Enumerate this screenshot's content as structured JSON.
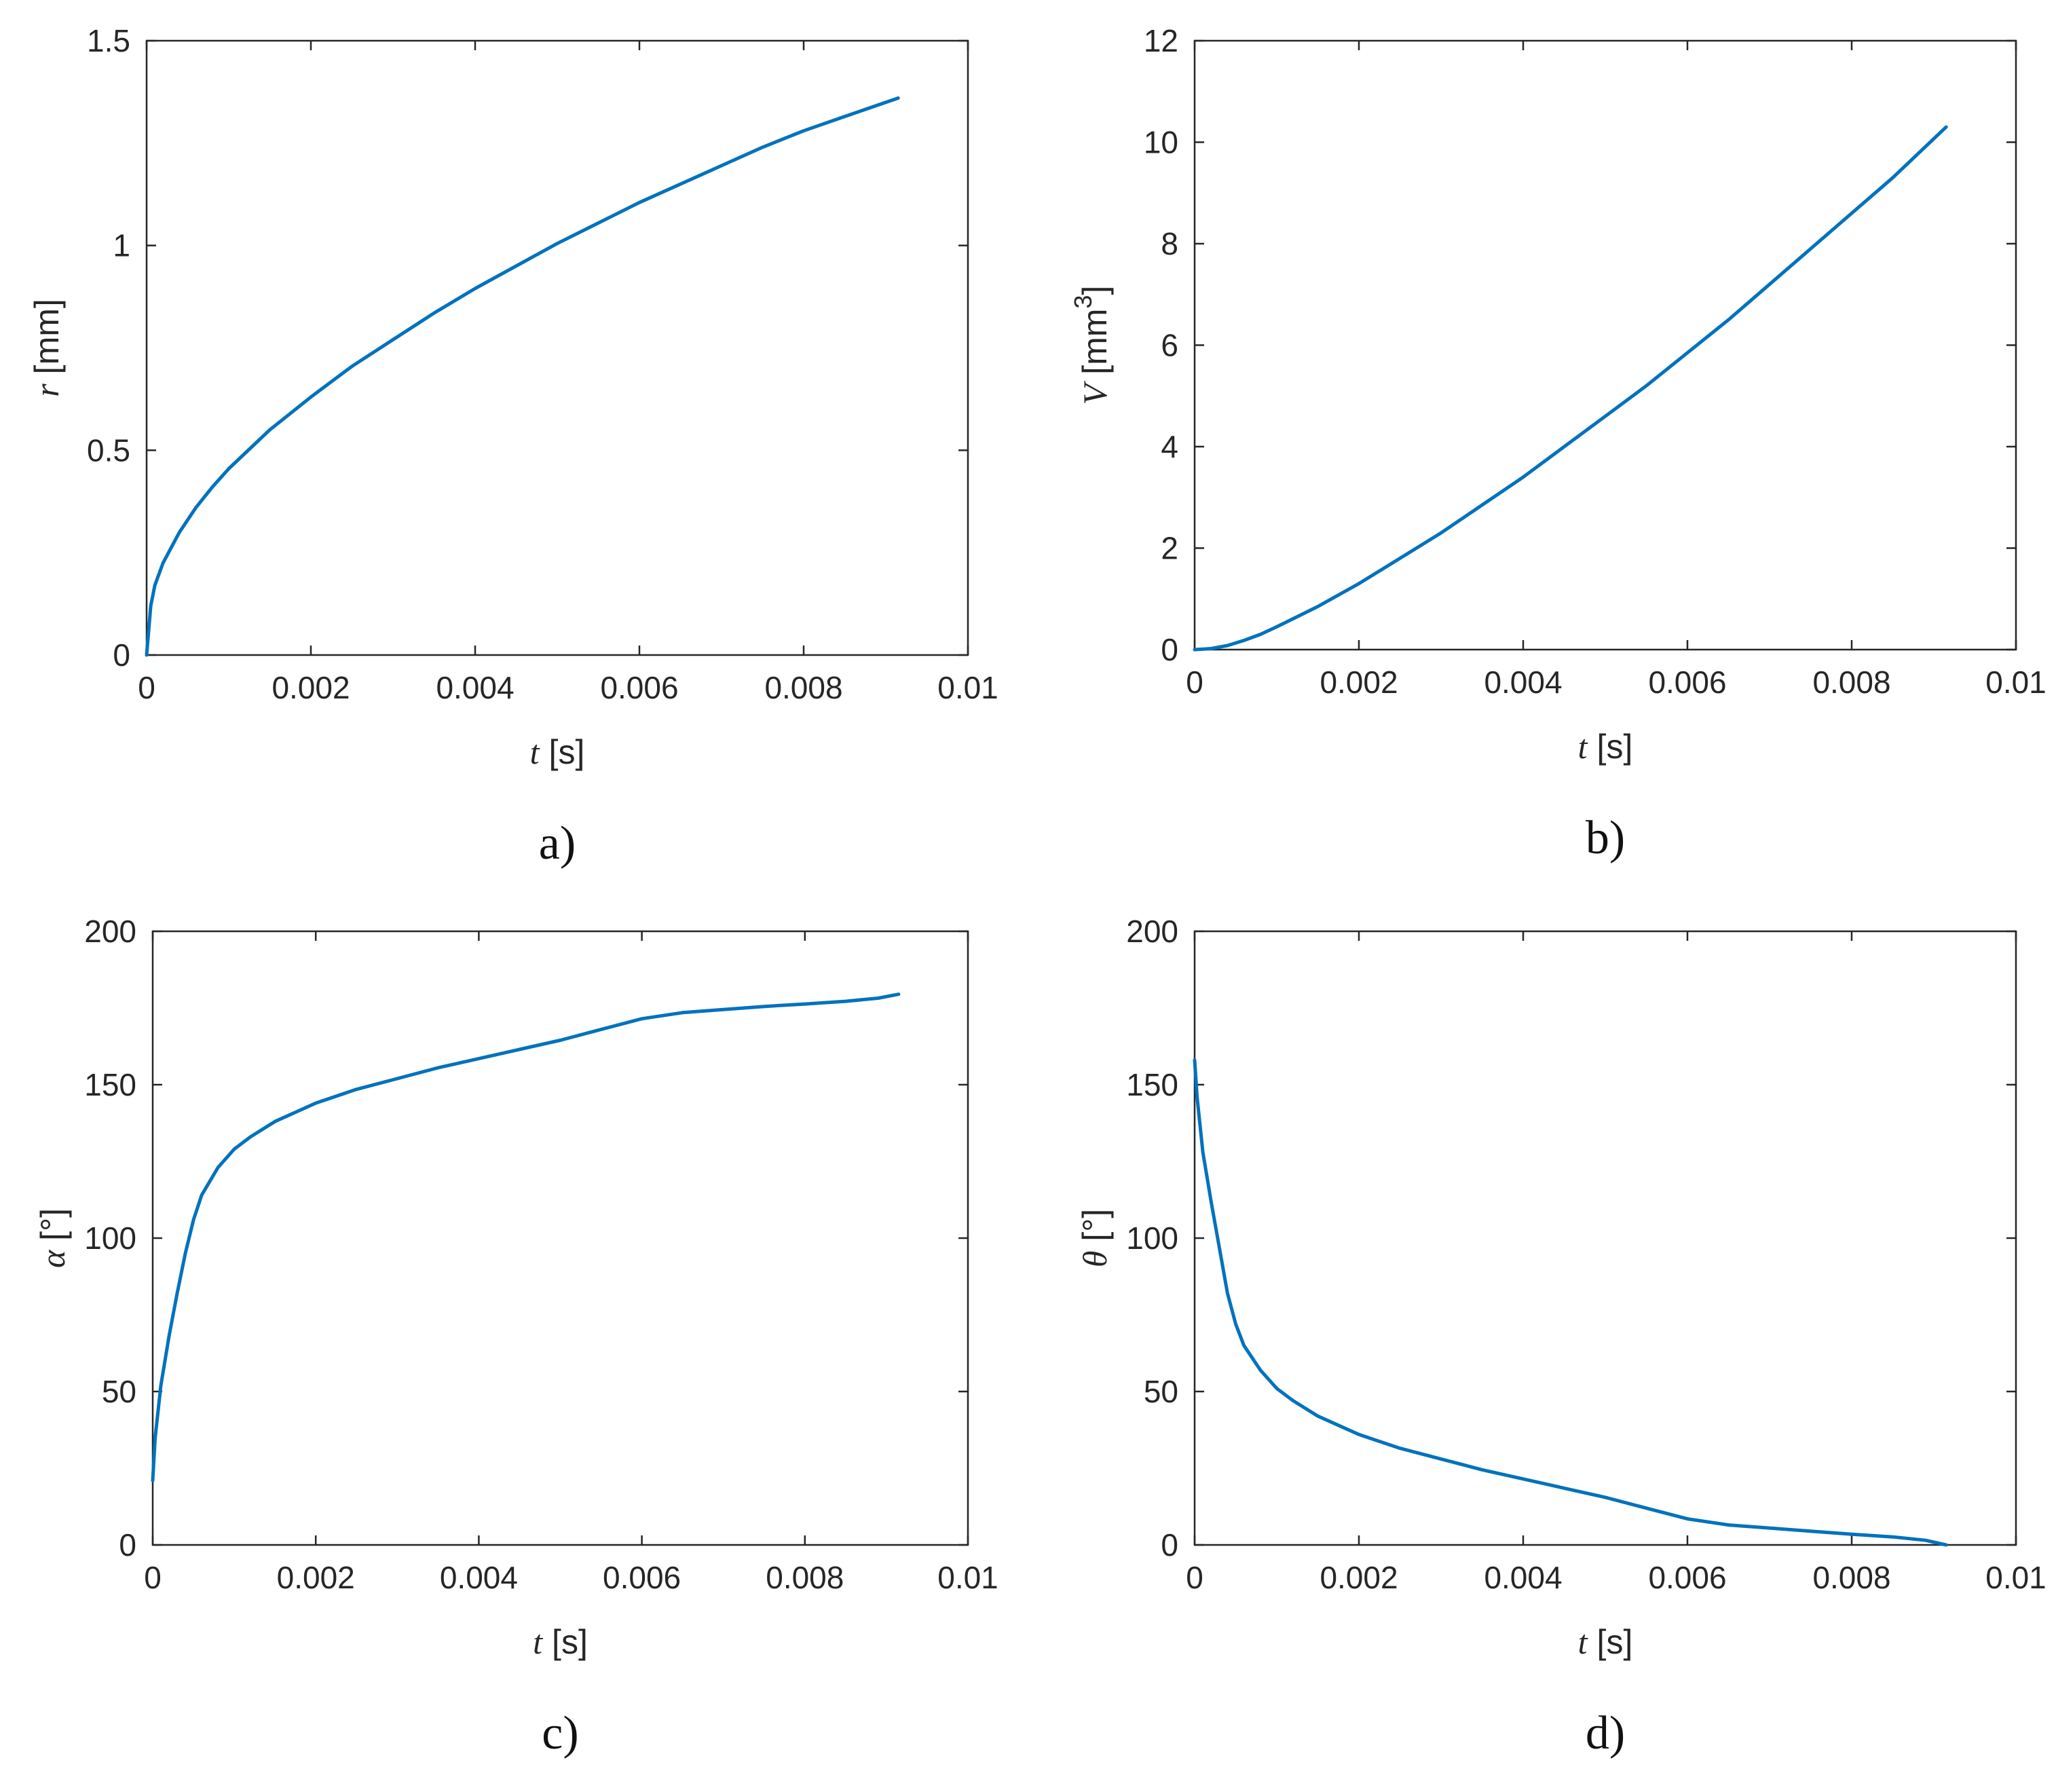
{
  "colors": {
    "series": "#0072BD",
    "axes": "#262626"
  },
  "chart_data": [
    {
      "type": "line",
      "panel_caption": "a)",
      "xlabel": {
        "symbol": "t",
        "unit": "[s]"
      },
      "ylabel": {
        "symbol": "r",
        "unit": "[mm]"
      },
      "xlim": [
        0,
        0.01
      ],
      "ylim": [
        0,
        1.5
      ],
      "xticks": [
        0,
        0.002,
        0.004,
        0.006,
        0.008,
        0.01
      ],
      "xtick_labels": [
        "0",
        "0.002",
        "0.004",
        "0.006",
        "0.008",
        "0.01"
      ],
      "yticks": [
        0,
        0.5,
        1,
        1.5
      ],
      "ytick_labels": [
        "0",
        "0.5",
        "1",
        "1.5"
      ],
      "series": [
        {
          "name": "r",
          "x": [
            0,
            5e-05,
            0.0001,
            0.0002,
            0.0004,
            0.0006,
            0.0008,
            0.001,
            0.0015,
            0.002,
            0.0025,
            0.003,
            0.0035,
            0.004,
            0.0045,
            0.005,
            0.0055,
            0.006,
            0.0065,
            0.007,
            0.0075,
            0.008,
            0.0085,
            0.00915
          ],
          "y": [
            0,
            0.12,
            0.17,
            0.225,
            0.3,
            0.36,
            0.41,
            0.455,
            0.55,
            0.63,
            0.705,
            0.77,
            0.835,
            0.895,
            0.95,
            1.005,
            1.055,
            1.105,
            1.15,
            1.195,
            1.24,
            1.28,
            1.315,
            1.36
          ]
        }
      ]
    },
    {
      "type": "line",
      "panel_caption": "b)",
      "xlabel": {
        "symbol": "t",
        "unit": "[s]"
      },
      "ylabel": {
        "symbol": "V",
        "unit": "[mm",
        "superscript": "3",
        "unit_close": "]"
      },
      "xlim": [
        0,
        0.01
      ],
      "ylim": [
        0,
        12
      ],
      "xticks": [
        0,
        0.002,
        0.004,
        0.006,
        0.008,
        0.01
      ],
      "xtick_labels": [
        "0",
        "0.002",
        "0.004",
        "0.006",
        "0.008",
        "0.01"
      ],
      "yticks": [
        0,
        2,
        4,
        6,
        8,
        10,
        12
      ],
      "ytick_labels": [
        "0",
        "2",
        "4",
        "6",
        "8",
        "10",
        "12"
      ],
      "series": [
        {
          "name": "V",
          "x": [
            0,
            0.0002,
            0.0004,
            0.0006,
            0.0008,
            0.001,
            0.0015,
            0.002,
            0.0025,
            0.003,
            0.0035,
            0.004,
            0.0045,
            0.005,
            0.0055,
            0.006,
            0.0065,
            0.007,
            0.0075,
            0.008,
            0.0085,
            0.00915
          ],
          "y": [
            0,
            0.02,
            0.08,
            0.18,
            0.3,
            0.45,
            0.85,
            1.3,
            1.8,
            2.3,
            2.85,
            3.4,
            4.0,
            4.6,
            5.2,
            5.85,
            6.5,
            7.2,
            7.9,
            8.6,
            9.3,
            10.3
          ]
        }
      ]
    },
    {
      "type": "line",
      "panel_caption": "c)",
      "xlabel": {
        "symbol": "t",
        "unit": "[s]"
      },
      "ylabel": {
        "symbol": "α",
        "unit": "[°]"
      },
      "xlim": [
        0,
        0.01
      ],
      "ylim": [
        0,
        200
      ],
      "xticks": [
        0,
        0.002,
        0.004,
        0.006,
        0.008,
        0.01
      ],
      "xtick_labels": [
        "0",
        "0.002",
        "0.004",
        "0.006",
        "0.008",
        "0.01"
      ],
      "yticks": [
        0,
        50,
        100,
        150,
        200
      ],
      "ytick_labels": [
        "0",
        "50",
        "100",
        "150",
        "200"
      ],
      "series": [
        {
          "name": "alpha",
          "x": [
            0,
            3e-05,
            0.0001,
            0.0002,
            0.0003,
            0.0004,
            0.0005,
            0.0006,
            0.0008,
            0.001,
            0.0012,
            0.0015,
            0.002,
            0.0025,
            0.003,
            0.0035,
            0.004,
            0.0045,
            0.005,
            0.0055,
            0.006,
            0.0065,
            0.007,
            0.0075,
            0.008,
            0.0085,
            0.0089,
            0.00915
          ],
          "y": [
            21,
            35,
            52,
            68,
            82,
            95,
            106,
            114,
            123,
            129,
            133,
            138,
            144,
            148.5,
            152,
            155.5,
            158.5,
            161.5,
            164.5,
            168,
            171.5,
            173.5,
            174.5,
            175.5,
            176.3,
            177.2,
            178.2,
            179.5
          ]
        }
      ]
    },
    {
      "type": "line",
      "panel_caption": "d)",
      "xlabel": {
        "symbol": "t",
        "unit": "[s]"
      },
      "ylabel": {
        "symbol": "θ",
        "unit": "[°]"
      },
      "xlim": [
        0,
        0.01
      ],
      "ylim": [
        0,
        200
      ],
      "xticks": [
        0,
        0.002,
        0.004,
        0.006,
        0.008,
        0.01
      ],
      "xtick_labels": [
        "0",
        "0.002",
        "0.004",
        "0.006",
        "0.008",
        "0.01"
      ],
      "yticks": [
        0,
        50,
        100,
        150,
        200
      ],
      "ytick_labels": [
        "0",
        "50",
        "100",
        "150",
        "200"
      ],
      "series": [
        {
          "name": "theta",
          "x": [
            0,
            3e-05,
            0.0001,
            0.0002,
            0.0003,
            0.0004,
            0.0005,
            0.0006,
            0.0008,
            0.001,
            0.0012,
            0.0015,
            0.002,
            0.0025,
            0.003,
            0.0035,
            0.004,
            0.0045,
            0.005,
            0.0055,
            0.006,
            0.0065,
            0.007,
            0.0075,
            0.008,
            0.0085,
            0.0089,
            0.00915
          ],
          "y": [
            158,
            146,
            128,
            112,
            97,
            82,
            72,
            65,
            57,
            51,
            47,
            42,
            36,
            31.5,
            28,
            24.5,
            21.5,
            18.5,
            15.5,
            12,
            8.5,
            6.5,
            5.5,
            4.5,
            3.5,
            2.6,
            1.5,
            0
          ]
        }
      ]
    }
  ]
}
